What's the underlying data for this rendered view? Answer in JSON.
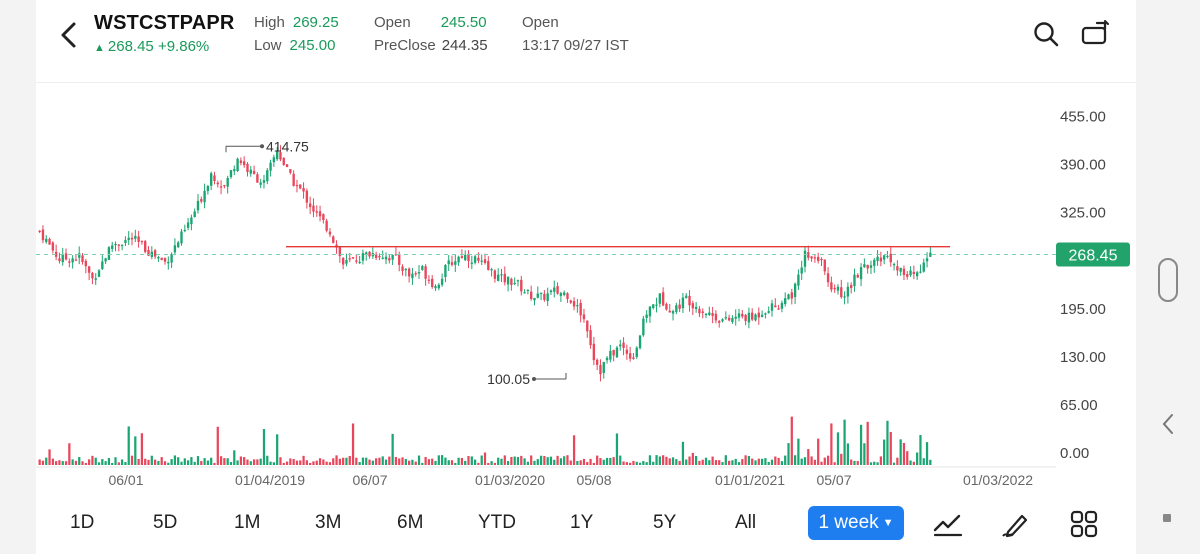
{
  "header": {
    "symbol": "WSTCSTPAPR",
    "price": "268.45",
    "change_pct": "+9.86%",
    "high_label": "High",
    "high_value": "269.25",
    "low_label": "Low",
    "low_value": "245.00",
    "open_label": "Open",
    "open_value": "245.50",
    "preclose_label": "PreClose",
    "preclose_value": "244.35",
    "status_label": "Open",
    "timestamp": "13:17 09/27 IST"
  },
  "icons": {
    "back": "chevron-left-icon",
    "search": "search-icon",
    "rotate": "rotate-screen-icon"
  },
  "colors": {
    "up": "#1aa672",
    "down": "#e8465b",
    "price_tag": "#22a36b",
    "resistance": "#e53935",
    "accent": "#1e7ef0"
  },
  "chart_data": {
    "type": "candlestick",
    "y_ticks": [
      "455.00",
      "390.00",
      "325.00",
      "268.45",
      "195.00",
      "130.00",
      "65.00",
      "0.00"
    ],
    "ylim": [
      0,
      455
    ],
    "x_ticks": [
      "06/01",
      "01/04/2019",
      "06/07",
      "01/03/2020",
      "05/08",
      "01/01/2021",
      "05/07",
      "01/03/2022"
    ],
    "last_price_label": "268.45",
    "annotations": [
      {
        "text": "414.75",
        "value": 414.75
      },
      {
        "text": "100.05",
        "value": 100.05
      }
    ],
    "resistance_level": 279,
    "close_path": [
      [
        0,
        300
      ],
      [
        6,
        262
      ],
      [
        12,
        265
      ],
      [
        16,
        235
      ],
      [
        22,
        282
      ],
      [
        28,
        290
      ],
      [
        34,
        270
      ],
      [
        38,
        258
      ],
      [
        44,
        300
      ],
      [
        48,
        335
      ],
      [
        52,
        378
      ],
      [
        56,
        360
      ],
      [
        60,
        400
      ],
      [
        64,
        378
      ],
      [
        68,
        365
      ],
      [
        72,
        410
      ],
      [
        76,
        372
      ],
      [
        80,
        350
      ],
      [
        84,
        322
      ],
      [
        88,
        300
      ],
      [
        92,
        255
      ],
      [
        96,
        262
      ],
      [
        100,
        270
      ],
      [
        104,
        268
      ],
      [
        108,
        262
      ],
      [
        112,
        240
      ],
      [
        116,
        248
      ],
      [
        120,
        225
      ],
      [
        124,
        255
      ],
      [
        128,
        268
      ],
      [
        132,
        262
      ],
      [
        136,
        248
      ],
      [
        140,
        235
      ],
      [
        144,
        232
      ],
      [
        148,
        215
      ],
      [
        152,
        210
      ],
      [
        156,
        218
      ],
      [
        160,
        215
      ],
      [
        164,
        190
      ],
      [
        166,
        170
      ],
      [
        168,
        130
      ],
      [
        170,
        112
      ],
      [
        172,
        128
      ],
      [
        176,
        145
      ],
      [
        180,
        130
      ],
      [
        184,
        190
      ],
      [
        188,
        210
      ],
      [
        192,
        192
      ],
      [
        196,
        210
      ],
      [
        200,
        195
      ],
      [
        204,
        186
      ],
      [
        208,
        178
      ],
      [
        212,
        185
      ],
      [
        216,
        182
      ],
      [
        220,
        195
      ],
      [
        224,
        200
      ],
      [
        228,
        215
      ],
      [
        232,
        270
      ],
      [
        236,
        265
      ],
      [
        240,
        225
      ],
      [
        244,
        215
      ],
      [
        248,
        242
      ],
      [
        252,
        255
      ],
      [
        256,
        268
      ],
      [
        260,
        252
      ],
      [
        263,
        238
      ],
      [
        266,
        245
      ],
      [
        270,
        268
      ]
    ],
    "n_candles": 271,
    "volume_hint": "bars scaled 0-65 region"
  },
  "bottom": {
    "ranges": [
      "1D",
      "5D",
      "1M",
      "3M",
      "6M",
      "YTD",
      "1Y",
      "5Y",
      "All"
    ],
    "interval": "1 week",
    "tools": [
      "indicator-icon",
      "draw-icon",
      "grid-icon"
    ]
  }
}
